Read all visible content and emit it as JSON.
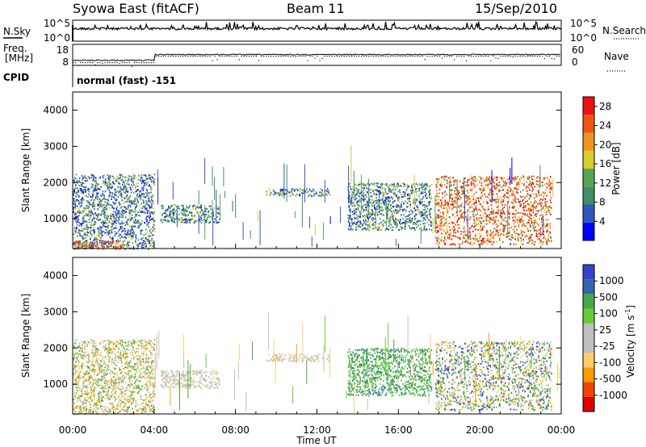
{
  "header": {
    "station": "Syowa East (fitACF)",
    "beam": "Beam 11",
    "date": "15/Sep/2010"
  },
  "strips": {
    "nsky_label": "N.Sky",
    "nsky_ticks": [
      "10^5",
      "10^0"
    ],
    "nsearch_label": "N.Search",
    "nsearch_ticks": [
      "10^5",
      "10^0"
    ],
    "freq_label_line1": "Freq.",
    "freq_label_line2": "[MHz]",
    "freq_ticks": [
      "18",
      "8"
    ],
    "nave_label": "Nave",
    "nave_ticks": [
      "60",
      "0"
    ],
    "cpid_label": "CPID",
    "cpid_text": "normal (fast) -151"
  },
  "colors": {
    "power_scale": [
      "#0000ff",
      "#3355bb",
      "#3f8f66",
      "#55a555",
      "#d6cc2a",
      "#ee9422",
      "#ee5511",
      "#ee1111"
    ],
    "velocity_scale": [
      "#dd0000",
      "#ee4400",
      "#ff9900",
      "#ffcc66",
      "#c0c0c0",
      "#bfbfbf",
      "#66cc33",
      "#44aa44",
      "#3366aa",
      "#3344cc"
    ]
  },
  "chart_data": [
    {
      "type": "heatmap",
      "panel": "power",
      "ylabel": "Slant Range [km]",
      "ylim": [
        180,
        4500
      ],
      "yticks": [
        "1000",
        "2000",
        "3000",
        "4000"
      ],
      "xlim": [
        0,
        24
      ],
      "legend": {
        "label": "Power [dB]",
        "ticks": [
          "4",
          "8",
          "12",
          "16",
          "20",
          "24",
          "28"
        ],
        "range": [
          0,
          30
        ],
        "placement": "right"
      },
      "echo_regions": [
        {
          "t_start": 0.0,
          "t_end": 4.0,
          "r_start": 180,
          "r_end": 2250,
          "level": "mixed low power"
        },
        {
          "t_start": 0.0,
          "t_end": 2.5,
          "r_start": 180,
          "r_end": 400,
          "level": "high"
        },
        {
          "t_start": 4.3,
          "t_end": 7.2,
          "r_start": 900,
          "r_end": 1400,
          "level": "medium"
        },
        {
          "t_start": 9.5,
          "t_end": 12.6,
          "r_start": 1650,
          "r_end": 1850,
          "level": "medium"
        },
        {
          "t_start": 13.5,
          "t_end": 17.6,
          "r_start": 700,
          "r_end": 2000,
          "level": "medium"
        },
        {
          "t_start": 17.8,
          "t_end": 23.5,
          "r_start": 300,
          "r_end": 2200,
          "level": "high"
        }
      ]
    },
    {
      "type": "heatmap",
      "panel": "velocity",
      "ylabel": "Slant Range [km]",
      "xlabel": "Time UT",
      "ylim": [
        180,
        4500
      ],
      "yticks": [
        "1000",
        "2000",
        "3000",
        "4000"
      ],
      "xlim": [
        0,
        24
      ],
      "xticks": [
        "00:00",
        "04:00",
        "08:00",
        "12:00",
        "16:00",
        "20:00",
        "00:00"
      ],
      "legend": {
        "label": "Velocity [m s-1]",
        "ticks": [
          "1000",
          "500",
          "100",
          "25",
          "-25",
          "-100",
          "-500",
          "-1000"
        ],
        "placement": "right"
      },
      "echo_regions": [
        {
          "t_start": 0.0,
          "t_end": 4.0,
          "r_start": 180,
          "r_end": 2250,
          "level": "mixed low velocity"
        },
        {
          "t_start": 4.3,
          "t_end": 7.2,
          "r_start": 900,
          "r_end": 1400,
          "level": "near zero"
        },
        {
          "t_start": 9.5,
          "t_end": 12.6,
          "r_start": 1650,
          "r_end": 1850,
          "level": "near zero"
        },
        {
          "t_start": 13.5,
          "t_end": 17.6,
          "r_start": 700,
          "r_end": 2000,
          "level": "positive"
        },
        {
          "t_start": 17.8,
          "t_end": 23.5,
          "r_start": 300,
          "r_end": 2200,
          "level": "mixed positive"
        }
      ]
    }
  ]
}
